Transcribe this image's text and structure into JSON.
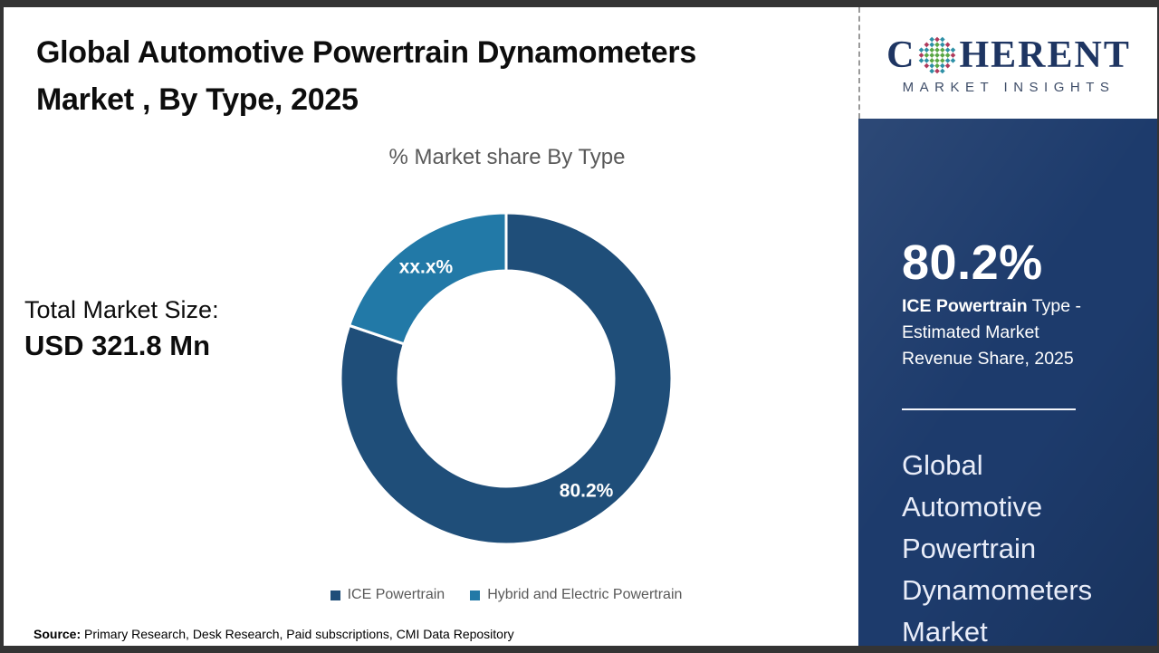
{
  "header": {
    "title_line1": "Global Automotive Powertrain Dynamometers",
    "title_line2": "Market , By Type, 2025"
  },
  "chart_data": {
    "type": "pie",
    "subtype": "donut",
    "title": "% Market share By Type",
    "categories": [
      "ICE Powertrain",
      "Hybrid and Electric Powertrain"
    ],
    "values": [
      80.2,
      19.8
    ],
    "slice_labels": [
      "80.2%",
      "xx.x%"
    ],
    "colors": [
      "#1f4e79",
      "#2279a7"
    ],
    "start_angle_deg": 0,
    "direction": "clockwise",
    "legend_position": "bottom"
  },
  "total": {
    "label": "Total Market Size:",
    "value": "USD 321.8 Mn"
  },
  "source": {
    "label": "Source:",
    "text": " Primary Research, Desk Research, Paid subscriptions, CMI Data Repository"
  },
  "sidebar": {
    "logo": {
      "text_c": "C",
      "text_rest": "HERENT",
      "subtitle": "MARKET INSIGHTS"
    },
    "stat_value": "80.2%",
    "stat_desc_bold": "ICE Powertrain",
    "stat_desc_rest": " Type - Estimated Market Revenue Share, 2025",
    "market_lines": [
      "Global",
      "Automotive",
      "Powertrain",
      "Dynamometers",
      "Market"
    ]
  },
  "theme": {
    "navy_panel": "#1d3b6c",
    "slice_dark": "#1f4e79",
    "slice_light": "#2279a7",
    "gray_text": "#595959"
  }
}
